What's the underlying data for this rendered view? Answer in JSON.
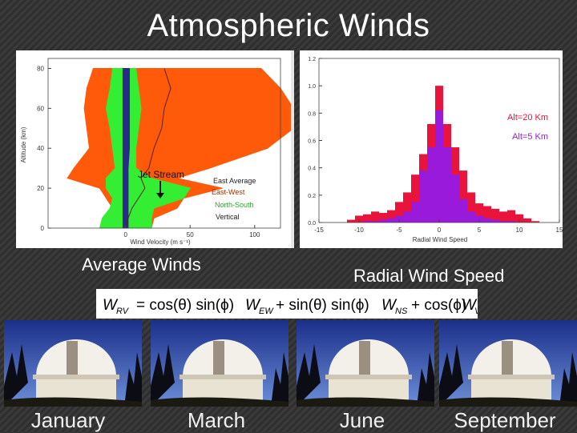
{
  "slide": {
    "title": "Atmospheric Winds",
    "caption_left": "Average Winds",
    "caption_right": "Radial Wind Speed"
  },
  "chart_data": [
    {
      "type": "area",
      "orientation": "vertical-profile",
      "xlabel": "Wind Velocity (m s⁻¹)",
      "ylabel": "Altitude (km)",
      "xlim": [
        -60,
        120
      ],
      "ylim": [
        0,
        85
      ],
      "x_ticks": [
        "0",
        "50",
        "100"
      ],
      "y_ticks": [
        "0",
        "20",
        "40",
        "60",
        "80"
      ],
      "annotations": {
        "jet_stream": "Jet Stream",
        "east_average": "East Average",
        "east_west": "East-West",
        "north_south": "North-South",
        "vertical": "Vertical"
      },
      "altitude": [
        0,
        5,
        10,
        15,
        20,
        25,
        30,
        40,
        50,
        60,
        70,
        80
      ],
      "series": [
        {
          "name": "East-West",
          "color": "#ff5a0a",
          "lower": [
            -15,
            -15,
            -10,
            -15,
            -20,
            -45,
            -40,
            -28,
            -30,
            -32,
            -30,
            -25
          ],
          "upper": [
            20,
            22,
            40,
            45,
            75,
            40,
            65,
            110,
            130,
            130,
            120,
            105
          ]
        },
        {
          "name": "North-South",
          "color": "#33ee33",
          "lower": [
            -20,
            -18,
            -12,
            -10,
            -15,
            -15,
            -8,
            -10,
            -12,
            -15,
            -12,
            -10
          ],
          "upper": [
            20,
            20,
            22,
            45,
            50,
            20,
            8,
            8,
            10,
            12,
            10,
            8
          ]
        },
        {
          "name": "Vertical",
          "color": "#2a2a8a",
          "lower": [
            -2,
            -2,
            -2,
            -2,
            -2,
            -2,
            -2,
            -2,
            -2,
            -2,
            -2,
            -2
          ],
          "upper": [
            2,
            2,
            2,
            2,
            2,
            2,
            2,
            3,
            3,
            3,
            3,
            3
          ]
        }
      ],
      "east_average": [
        0,
        2,
        5,
        10,
        15,
        12,
        18,
        22,
        28,
        30,
        35,
        30
      ]
    },
    {
      "type": "bar",
      "xlabel": "Radial Wind Speed",
      "ylabel": "",
      "xlim": [
        -15,
        15
      ],
      "ylim": [
        0,
        1.2
      ],
      "x_ticks": [
        "-15",
        "-10",
        "-5",
        "0",
        "5",
        "10",
        "15"
      ],
      "y_ticks": [
        "0.0",
        "0.2",
        "0.4",
        "0.6",
        "0.8",
        "1.0",
        "1.2"
      ],
      "bin_centers": [
        -12,
        -11,
        -10,
        -9,
        -8,
        -7,
        -6,
        -5,
        -4,
        -3,
        -2,
        -1,
        0,
        1,
        2,
        3,
        4,
        5,
        6,
        7,
        8,
        9,
        10,
        11,
        12,
        13
      ],
      "series": [
        {
          "name": "Alt=20 Km",
          "color": "#e8143c",
          "values": [
            0.0,
            0.02,
            0.05,
            0.06,
            0.08,
            0.07,
            0.09,
            0.15,
            0.22,
            0.35,
            0.5,
            0.72,
            1.0,
            0.72,
            0.55,
            0.38,
            0.22,
            0.14,
            0.12,
            0.1,
            0.08,
            0.09,
            0.06,
            0.03,
            0.01,
            0.0
          ]
        },
        {
          "name": "Alt=5 Km",
          "color": "#9a1adb",
          "values": [
            0.0,
            0.0,
            0.0,
            0.01,
            0.01,
            0.02,
            0.03,
            0.05,
            0.08,
            0.15,
            0.38,
            0.55,
            0.82,
            0.55,
            0.35,
            0.17,
            0.08,
            0.05,
            0.03,
            0.02,
            0.01,
            0.01,
            0.0,
            0.0,
            0.0,
            0.0
          ]
        }
      ]
    }
  ],
  "photos": [
    {
      "month": "January"
    },
    {
      "month": "March"
    },
    {
      "month": "June"
    },
    {
      "month": "September"
    }
  ]
}
